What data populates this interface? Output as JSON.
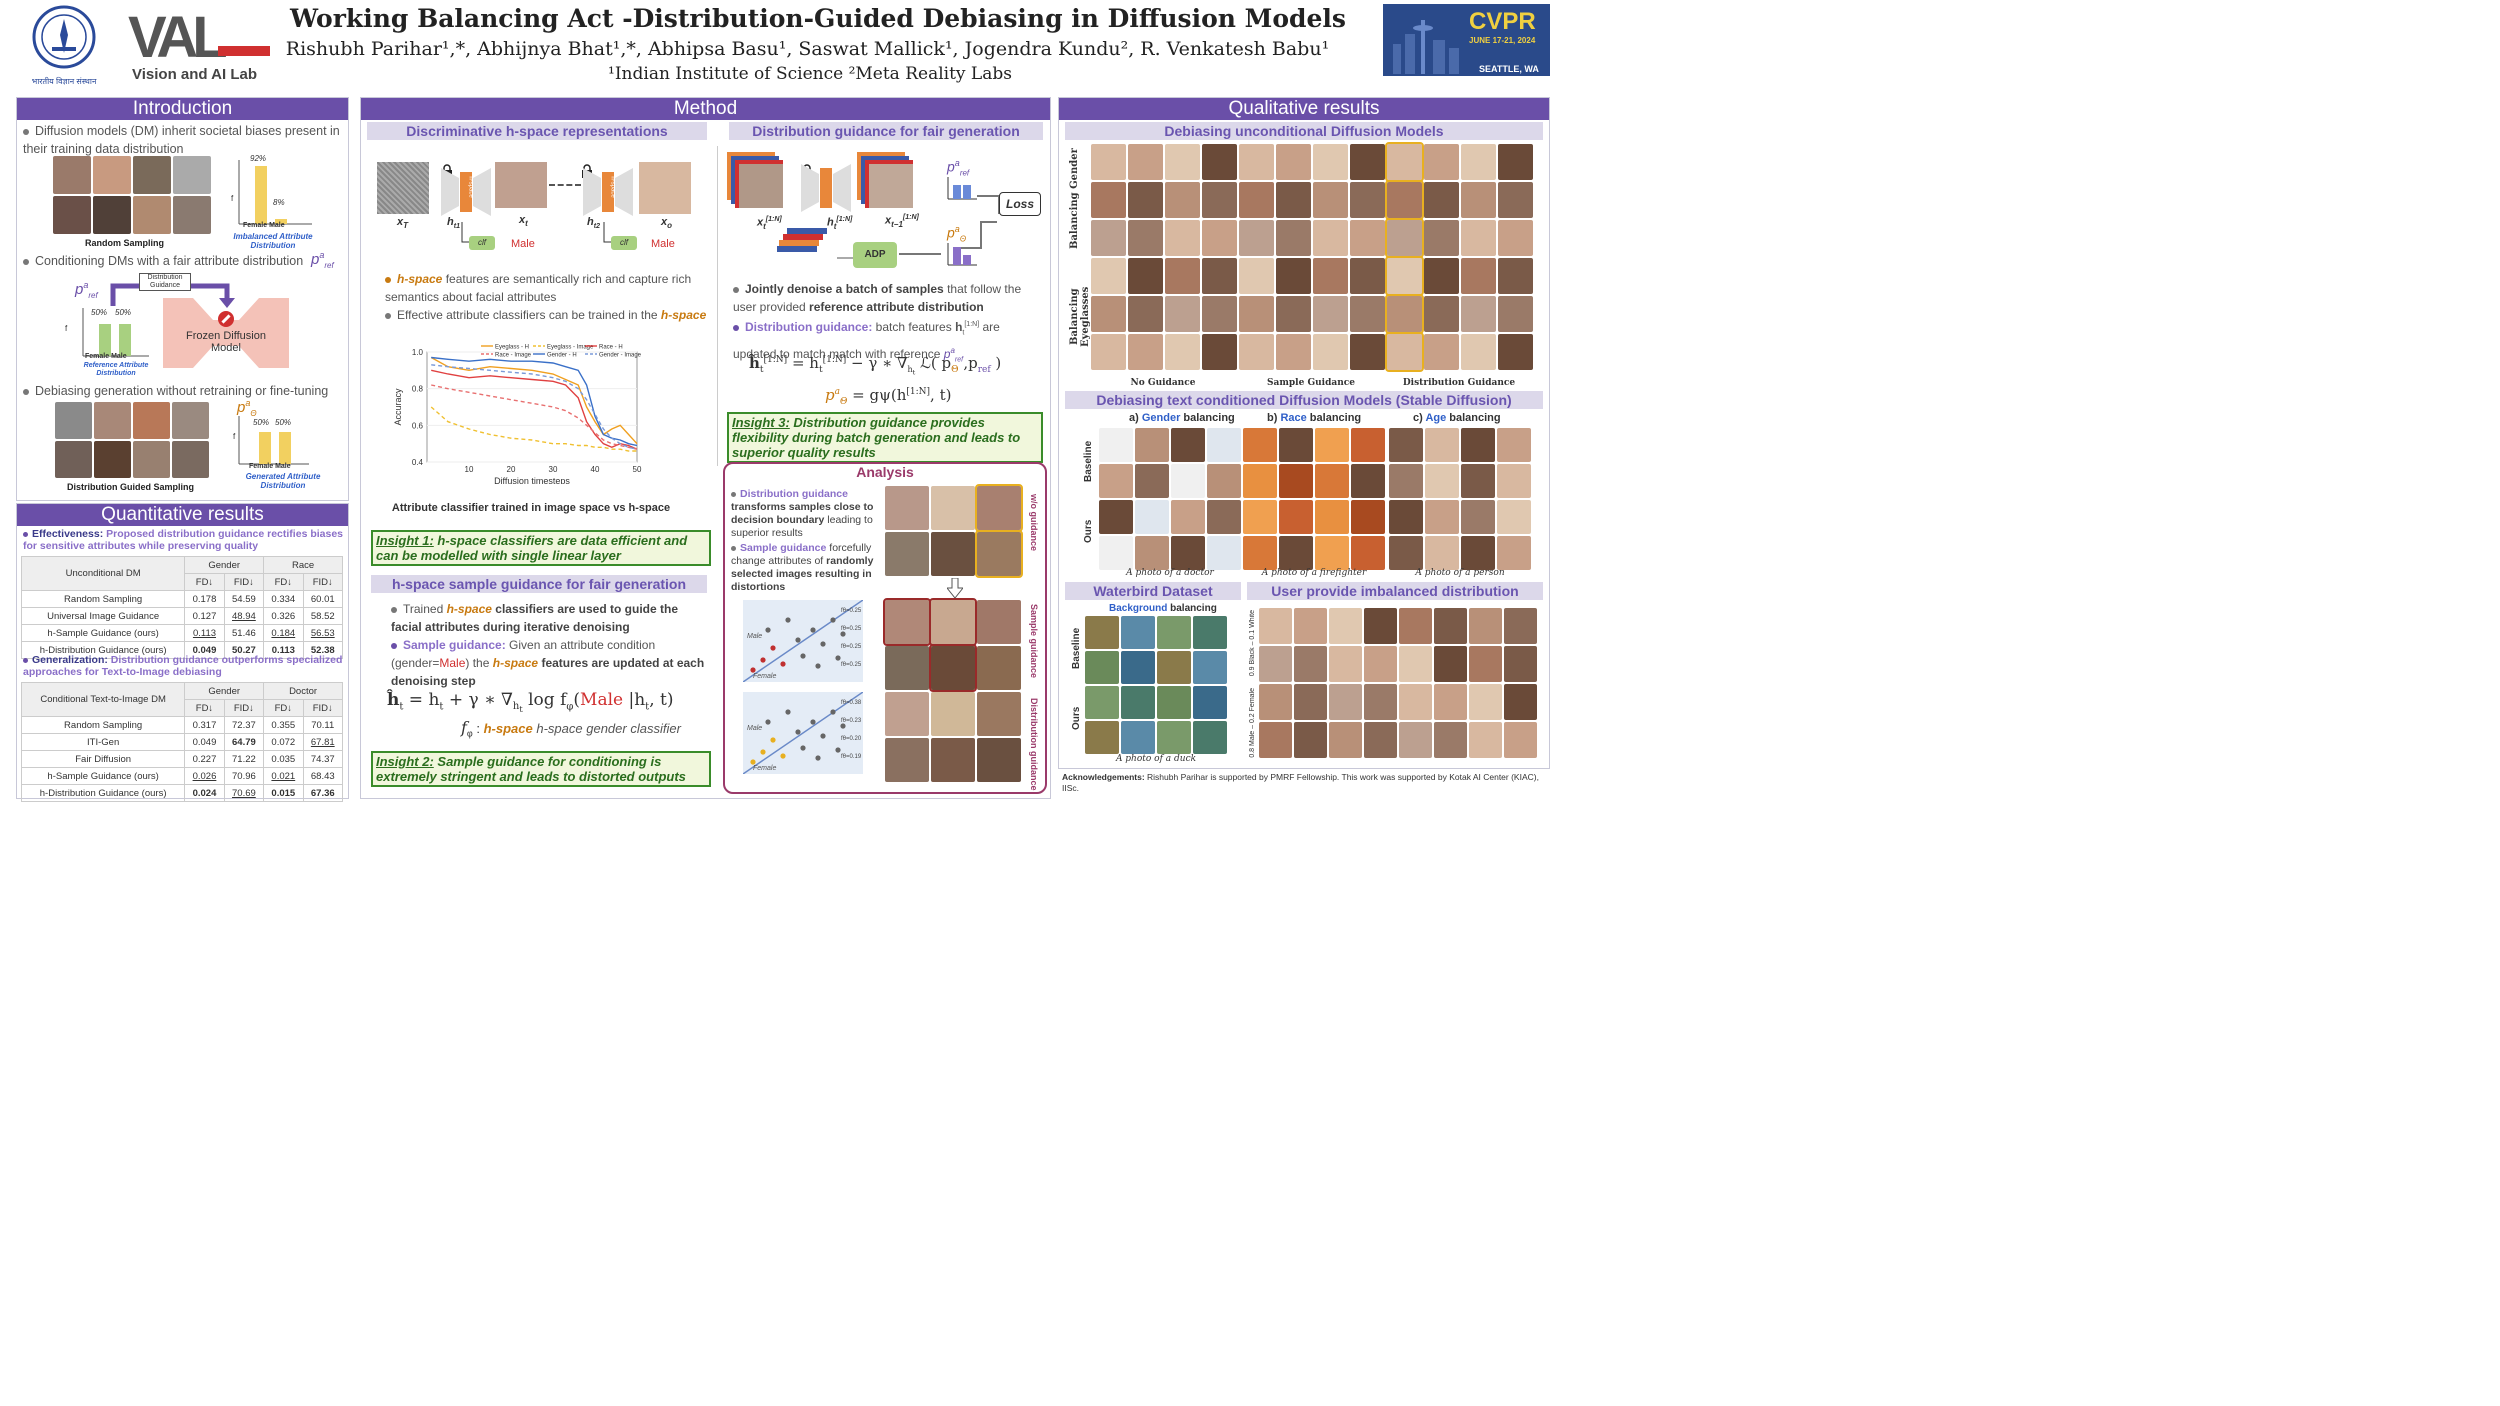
{
  "header": {
    "title": "Working Balancing Act -Distribution-Guided Debiasing in Diffusion Models",
    "authors": "Rishubh Parihar¹,*, Abhijnya Bhat¹,*, Abhipsa Basu¹, Saswat Mallick¹, Jogendra Kundu², R. Venkatesh Babu¹",
    "affiliations": "¹Indian Institute of Science  ²Meta Reality Labs",
    "iisc_caption": "भारतीय विज्ञान संस्थान",
    "lab_name": "Vision and AI Lab",
    "lab_logo": "VAL",
    "cvpr": "CVPR",
    "cvpr_dates": "JUNE 17-21, 2024",
    "cvpr_city": "SEATTLE, WA"
  },
  "intro": {
    "title": "Introduction",
    "b1": "Diffusion models (DM) inherit societal biases present in their training data distribution",
    "random_sampling": "Random Sampling",
    "bar1_vals": [
      "92%",
      "8%"
    ],
    "bar1_values": [
      92,
      8
    ],
    "bar_axis": "f",
    "bar_labels": "Female Male",
    "bar1_caption": "Imbalanced  Attribute Distribution",
    "b2": "Conditioning DMs with a fair attribute distribution",
    "p_ref": "p",
    "p_ref_sup": "a",
    "p_ref_sub": "ref",
    "dist_guidance_label": "Distribution Guidance",
    "bar2_vals": [
      "50%",
      "50%"
    ],
    "bar2_values": [
      50,
      50
    ],
    "bar2_caption": "Reference Attribute Distribution",
    "frozen": "Frozen Diffusion Model",
    "b3": "Debiasing generation without retraining or fine-tuning",
    "dgs": "Distribution Guided Sampling",
    "p_theta": "p",
    "p_theta_sub": "Θ",
    "bar3_vals": [
      "50%",
      "50%"
    ],
    "bar3_values": [
      50,
      50
    ],
    "bar3_caption": "Generated Attribute Distribution"
  },
  "quant": {
    "title": "Quantitative results",
    "eff_label": "Effectiveness:",
    "eff_text": "Proposed distribution guidance rectifies biases for sensitive attributes while preserving quality",
    "gen_label": "Generalization:",
    "gen_text": "Distribution guidance outperforms specialized approaches for Text-to-Image debiasing",
    "t1": {
      "head": [
        "Unconditional DM",
        "Gender",
        "Race"
      ],
      "sub": [
        "FD↓",
        "FID↓",
        "FD↓",
        "FID↓"
      ],
      "rows": [
        [
          "Random Sampling",
          "0.178",
          "54.59",
          "0.334",
          "60.01"
        ],
        [
          "Universal Image Guidance",
          "0.127",
          "48.94",
          "0.326",
          "58.52"
        ],
        [
          "h-Sample Guidance (ours)",
          "0.113",
          "51.46",
          "0.184",
          "56.53"
        ],
        [
          "h-Distribution Guidance (ours)",
          "0.049",
          "50.27",
          "0.113",
          "52.38"
        ]
      ]
    },
    "t2": {
      "head": [
        "Conditional Text-to-Image DM",
        "Gender",
        "Doctor"
      ],
      "sub": [
        "FD↓",
        "FID↓",
        "FD↓",
        "FID↓"
      ],
      "rows": [
        [
          "Random Sampling",
          "0.317",
          "72.37",
          "0.355",
          "70.11"
        ],
        [
          "ITI-Gen",
          "0.049",
          "64.79",
          "0.072",
          "67.81"
        ],
        [
          "Fair Diffusion",
          "0.227",
          "71.22",
          "0.035",
          "74.37"
        ],
        [
          "h-Sample Guidance (ours)",
          "0.026",
          "70.96",
          "0.021",
          "68.43"
        ],
        [
          "h-Distribution Guidance (ours)",
          "0.024",
          "70.69",
          "0.015",
          "67.36"
        ]
      ]
    }
  },
  "method": {
    "title": "Method",
    "sub1": "Discriminative h-space representations",
    "sub2": "Distribution guidance for fair generation",
    "hspace": "h-space",
    "clf": "clf",
    "male": "Male",
    "xT": "x",
    "xT_sub": "T",
    "ht1": "h",
    "ht1_sub": "t1",
    "xt": "x",
    "xt_sub": "t",
    "ht2": "h",
    "ht2_sub": "t2",
    "x0": "x",
    "x0_sub": "o",
    "m_b1a": "h-space",
    "m_b1b": " features are semantically rich and capture rich semantics about facial attributes",
    "m_b2": "Effective attribute classifiers can be trained in the ",
    "m_b2b": "h-space",
    "plot_caption": "Attribute classifier trained in image space vs h-space",
    "ins1a": "Insight 1:",
    "ins1b": " h-space classifiers are data efficient and can be modelled with single linear layer",
    "sub3": "h-space sample guidance for fair generation",
    "m_b3a": "Trained ",
    "m_b3b": "h-space",
    "m_b3c": " classifiers are used to guide the facial attributes during iterative denoising",
    "m_b4a": "Sample guidance:",
    "m_b4b": " Given an attribute condition (gender=",
    "m_b4c": "Male",
    "m_b4d": ") the ",
    "m_b4e": "h-space",
    "m_b4f": " features are updated at each denoising step",
    "eq1": "ĥ_t = h_t + γ * ∇_{h_t} log fφʰ(Male | h_t, t)",
    "eq1_lhs": "ĥ",
    "eq1_rhs": " = h",
    "eq1_mid": " + γ ∗ ∇",
    "eq1_log": " log f",
    "eq1_male": "Male",
    "eq1_cond": " |h",
    "eq1_end": ", t)",
    "eq2_label": "f",
    "eq2_text": "h-space gender classifier",
    "ins2a": "Insight 2:",
    "ins2b": " Sample guidance for conditioning is extremely stringent and leads to distorted outputs",
    "xt1N": "x",
    "xt1N_sup": "[1:N]",
    "xt1N_sub": "t",
    "ht1N": "h",
    "ht1N_sup": "[1:N]",
    "ht1N_sub": "t",
    "xt1Nm": "x",
    "xt1Nm_sup": "[1:N]",
    "xt1Nm_sub": "t−1",
    "loss": "Loss",
    "adp": "ADP",
    "m_b5a": "Jointly denoise a batch of samples",
    "m_b5b": " that follow the user provided ",
    "m_b5c": "reference attribute distribution",
    "m_b6a": "Distribution guidance:",
    "m_b6b": " batch features ",
    "m_b6c": " are updated to match match with reference ",
    "eq3_lhs": "ĥ",
    "eq3_rhs": " = h",
    "eq3_mid": " − γ ∗ ∇",
    "eq3_end": " ℒ( p",
    "eq3_close": " )",
    "eq4": "= gψ(h",
    "eq4_end": ", t)",
    "ins3a": "Insight 3:",
    "ins3b": " Distribution guidance provides flexibility during batch generation and leads to superior quality results",
    "analysis_title": "Analysis",
    "an_b1a": "Distribution guidance",
    "an_b1b": " transforms samples close to decision boundary",
    "an_b1c": " leading to superior results",
    "an_b2a": "Sample guidance",
    "an_b2b": " forcefully change attributes of ",
    "an_b2c": "randomly selected images resulting in distortions",
    "wo": "w/o guidance",
    "sg": "Sample guidance",
    "dg": "Distribution guidance",
    "male_lbl": "Male",
    "female_lbl": "Female",
    "q_labels1": [
      "fθ=0.25",
      "fθ=0.25",
      "fθ=0.25",
      "fθ=0.25"
    ],
    "q_labels2": [
      "fθ=0.38",
      "fθ=0.23",
      "fθ=0.20",
      "fθ=0.19"
    ]
  },
  "chart_data": {
    "type": "line",
    "title": "",
    "xlabel": "Diffusion timesteps",
    "ylabel": "Accuracy",
    "xlim": [
      0,
      50
    ],
    "ylim": [
      0.4,
      1.0
    ],
    "xticks": [
      "10",
      "20",
      "30",
      "40",
      "50"
    ],
    "yticks": [
      "0.4",
      "0.6",
      "0.8",
      "1.0"
    ],
    "legend": "top",
    "x": [
      1,
      5,
      10,
      15,
      20,
      25,
      30,
      33,
      36,
      38,
      40,
      42,
      44,
      46,
      48,
      50
    ],
    "series": [
      {
        "name": "Eyeglass - H",
        "color": "#f0a020",
        "dash": false,
        "values": [
          0.97,
          0.92,
          0.9,
          0.92,
          0.91,
          0.9,
          0.88,
          0.85,
          0.82,
          0.7,
          0.62,
          0.55,
          0.58,
          0.6,
          0.55,
          0.5
        ]
      },
      {
        "name": "Eyeglass - Image",
        "color": "#f0c030",
        "dash": true,
        "values": [
          0.7,
          0.62,
          0.58,
          0.55,
          0.53,
          0.52,
          0.5,
          0.5,
          0.49,
          0.49,
          0.48,
          0.48,
          0.47,
          0.47,
          0.46,
          0.46
        ]
      },
      {
        "name": "Race - H",
        "color": "#e04040",
        "dash": false,
        "values": [
          0.9,
          0.88,
          0.86,
          0.87,
          0.86,
          0.85,
          0.84,
          0.82,
          0.75,
          0.62,
          0.55,
          0.5,
          0.48,
          0.5,
          0.49,
          0.47
        ]
      },
      {
        "name": "Race - Image",
        "color": "#e87070",
        "dash": true,
        "values": [
          0.82,
          0.8,
          0.78,
          0.76,
          0.74,
          0.72,
          0.7,
          0.68,
          0.64,
          0.6,
          0.56,
          0.52,
          0.5,
          0.49,
          0.48,
          0.47
        ]
      },
      {
        "name": "Gender - H",
        "color": "#3a70c8",
        "dash": false,
        "values": [
          0.97,
          0.96,
          0.95,
          0.96,
          0.95,
          0.95,
          0.94,
          0.92,
          0.9,
          0.82,
          0.65,
          0.55,
          0.53,
          0.52,
          0.5,
          0.49
        ]
      },
      {
        "name": "Gender - Image",
        "color": "#7a9ad8",
        "dash": true,
        "values": [
          0.93,
          0.92,
          0.91,
          0.9,
          0.89,
          0.88,
          0.86,
          0.84,
          0.8,
          0.74,
          0.66,
          0.58,
          0.53,
          0.5,
          0.48,
          0.47
        ]
      }
    ]
  },
  "qual": {
    "title": "Qualitative results",
    "sub1": "Debiasing unconditional Diffusion Models",
    "row1": "Balancing Gender",
    "row2": "Balancing Eyeglasses",
    "col1": "No Guidance",
    "col2": "Sample Guidance",
    "col3": "Distribution Guidance",
    "sub2": "Debiasing text conditioned Diffusion Models (Stable Diffusion)",
    "a": "a)",
    "a_attr": "Gender",
    "b": "b)",
    "b_attr": "Race",
    "c": "c)",
    "c_attr": "Age",
    "balancing": " balancing",
    "baseline": "Baseline",
    "ours": "Ours",
    "cap1": "A photo of a doctor",
    "cap2": "A photo of a firefighter",
    "cap3": "A photo of a person",
    "sub3": "Waterbird Dataset",
    "sub4": "User provide imbalanced distribution",
    "bg": "Background",
    "bg2": " balancing",
    "duck": "A photo of a duck",
    "imb_labels": [
      "0.8 Male – 0.2 Female",
      "0.9 Black – 0.1 White"
    ],
    "ack": "Acknowledgements:",
    "ack_text": " Rishubh Parihar is supported by PMRF Fellowship. This work was supported by Kotak AI Center (KIAC), IISc."
  },
  "colors": {
    "accent": "#6a4fa8",
    "sub": "#dcd8ea",
    "orange": "#e8873a",
    "green": "#3a8c2a"
  }
}
